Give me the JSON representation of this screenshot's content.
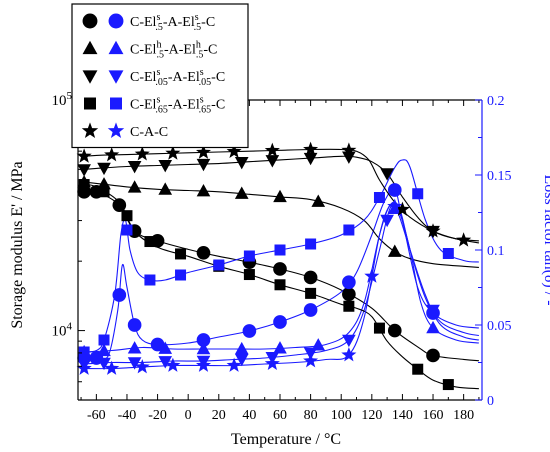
{
  "chart_data": {
    "type": "line",
    "xlabel": "Temperature / °C",
    "ylabel_left": "Storage modulus E' / MPa",
    "ylabel_right": "Loss factor tan(δ) / -",
    "x_ticks": [
      -60,
      -40,
      -20,
      0,
      20,
      40,
      60,
      80,
      100,
      120,
      140,
      160,
      180
    ],
    "xlim": [
      -72,
      192
    ],
    "y_left_scale": "log",
    "y_left_ticks": [
      "10^4",
      "10^5"
    ],
    "ylim_left": [
      5000,
      100000
    ],
    "y_right_ticks": [
      "0",
      "0.05",
      "0.1",
      "0.15",
      "0.2"
    ],
    "ylim_right": [
      0,
      0.2
    ],
    "colors": {
      "modulus": "#000000",
      "tan_delta": "#1a1aff",
      "axis_right": "#1a1aff"
    },
    "legend": {
      "position": "top-left",
      "entries": [
        {
          "marker": "circle",
          "name": [
            "C-El",
            "s",
            ".5",
            "-A-El",
            "s",
            ".5",
            "-C"
          ]
        },
        {
          "marker": "triangle-up",
          "name": [
            "C-El",
            "h",
            ".5",
            "-A-El",
            "h",
            ".5",
            "-C"
          ]
        },
        {
          "marker": "triangle-down",
          "name": [
            "C-El",
            "s",
            ".05",
            "-A-El",
            "s",
            ".05",
            "-C"
          ]
        },
        {
          "marker": "square",
          "name": [
            "C-El",
            "s",
            ".65",
            "-A-El",
            "s",
            ".65",
            "-C"
          ]
        },
        {
          "marker": "star",
          "name": [
            "C-A-C",
            "",
            "",
            "",
            "",
            "",
            ""
          ]
        }
      ]
    },
    "series": [
      {
        "marker": "circle",
        "modulus": [
          [
            -68,
            40000
          ],
          [
            -60,
            40000
          ],
          [
            -45,
            35000
          ],
          [
            -35,
            27000
          ],
          [
            -20,
            24500
          ],
          [
            0,
            22500
          ],
          [
            20,
            21000
          ],
          [
            40,
            19800
          ],
          [
            60,
            18500
          ],
          [
            80,
            17000
          ],
          [
            100,
            15000
          ],
          [
            120,
            12500
          ],
          [
            135,
            10000
          ],
          [
            150,
            8500
          ],
          [
            160,
            7800
          ],
          [
            180,
            7500
          ],
          [
            190,
            7400
          ]
        ],
        "tan_delta": [
          [
            -68,
            0.028
          ],
          [
            -60,
            0.028
          ],
          [
            -52,
            0.03
          ],
          [
            -46,
            0.06
          ],
          [
            -43,
            0.09
          ],
          [
            -40,
            0.075
          ],
          [
            -35,
            0.05
          ],
          [
            -30,
            0.04
          ],
          [
            -20,
            0.037
          ],
          [
            0,
            0.038
          ],
          [
            20,
            0.042
          ],
          [
            40,
            0.046
          ],
          [
            60,
            0.052
          ],
          [
            80,
            0.06
          ],
          [
            100,
            0.072
          ],
          [
            110,
            0.085
          ],
          [
            120,
            0.11
          ],
          [
            128,
            0.132
          ],
          [
            135,
            0.14
          ],
          [
            140,
            0.12
          ],
          [
            150,
            0.075
          ],
          [
            160,
            0.058
          ],
          [
            175,
            0.05
          ],
          [
            190,
            0.048
          ]
        ],
        "modulus_markers": [
          -68,
          -60,
          -45,
          -35,
          -20,
          10,
          40,
          60,
          80,
          105,
          135,
          160
        ],
        "tan_markers": [
          -68,
          -60,
          -45,
          -35,
          -20,
          10,
          40,
          60,
          80,
          105,
          135,
          160
        ]
      },
      {
        "marker": "triangle-up",
        "modulus": [
          [
            -68,
            44000
          ],
          [
            -60,
            43500
          ],
          [
            -40,
            42000
          ],
          [
            -20,
            41000
          ],
          [
            0,
            40500
          ],
          [
            20,
            40000
          ],
          [
            40,
            39000
          ],
          [
            60,
            38000
          ],
          [
            80,
            37000
          ],
          [
            100,
            34000
          ],
          [
            115,
            30000
          ],
          [
            125,
            25000
          ],
          [
            135,
            22000
          ],
          [
            145,
            20500
          ],
          [
            160,
            19500
          ],
          [
            180,
            19000
          ],
          [
            190,
            18800
          ]
        ],
        "tan_delta": [
          [
            -68,
            0.032
          ],
          [
            -50,
            0.033
          ],
          [
            -30,
            0.035
          ],
          [
            -10,
            0.034
          ],
          [
            10,
            0.034
          ],
          [
            30,
            0.034
          ],
          [
            50,
            0.034
          ],
          [
            70,
            0.035
          ],
          [
            90,
            0.037
          ],
          [
            105,
            0.045
          ],
          [
            115,
            0.065
          ],
          [
            125,
            0.11
          ],
          [
            132,
            0.13
          ],
          [
            138,
            0.125
          ],
          [
            145,
            0.1
          ],
          [
            152,
            0.065
          ],
          [
            160,
            0.048
          ],
          [
            175,
            0.04
          ],
          [
            190,
            0.038
          ]
        ],
        "modulus_markers": [
          -68,
          -55,
          -35,
          -15,
          10,
          35,
          60,
          85,
          135
        ],
        "tan_markers": [
          -68,
          -55,
          -35,
          -15,
          10,
          35,
          60,
          85,
          135,
          160
        ]
      },
      {
        "marker": "triangle-down",
        "modulus": [
          [
            -68,
            50000
          ],
          [
            -60,
            50500
          ],
          [
            -40,
            51500
          ],
          [
            -20,
            52000
          ],
          [
            0,
            52500
          ],
          [
            20,
            53000
          ],
          [
            40,
            54000
          ],
          [
            60,
            55000
          ],
          [
            80,
            56000
          ],
          [
            100,
            57000
          ],
          [
            110,
            56500
          ],
          [
            120,
            54000
          ],
          [
            130,
            48000
          ],
          [
            140,
            38000
          ],
          [
            150,
            31000
          ],
          [
            160,
            27000
          ],
          [
            175,
            25000
          ],
          [
            190,
            24500
          ]
        ],
        "tan_delta": [
          [
            -68,
            0.024
          ],
          [
            -50,
            0.025
          ],
          [
            -30,
            0.025
          ],
          [
            -10,
            0.026
          ],
          [
            10,
            0.026
          ],
          [
            30,
            0.027
          ],
          [
            50,
            0.028
          ],
          [
            70,
            0.03
          ],
          [
            90,
            0.033
          ],
          [
            105,
            0.04
          ],
          [
            115,
            0.06
          ],
          [
            125,
            0.1
          ],
          [
            132,
            0.128
          ],
          [
            137,
            0.125
          ],
          [
            145,
            0.1
          ],
          [
            155,
            0.07
          ],
          [
            165,
            0.05
          ],
          [
            180,
            0.042
          ],
          [
            190,
            0.04
          ]
        ],
        "modulus_markers": [
          -68,
          -55,
          -35,
          -15,
          10,
          35,
          55,
          80,
          105,
          130,
          160
        ],
        "tan_markers": [
          -68,
          -55,
          -35,
          -15,
          10,
          35,
          55,
          80,
          105,
          130,
          160
        ]
      },
      {
        "marker": "square",
        "modulus": [
          [
            -68,
            43000
          ],
          [
            -60,
            42000
          ],
          [
            -45,
            36000
          ],
          [
            -35,
            27000
          ],
          [
            -20,
            23000
          ],
          [
            0,
            21000
          ],
          [
            20,
            19000
          ],
          [
            40,
            17500
          ],
          [
            60,
            15800
          ],
          [
            80,
            14500
          ],
          [
            100,
            13000
          ],
          [
            110,
            12500
          ],
          [
            120,
            11500
          ],
          [
            130,
            9000
          ],
          [
            140,
            7700
          ],
          [
            150,
            6800
          ],
          [
            160,
            6100
          ],
          [
            175,
            5700
          ],
          [
            190,
            5600
          ]
        ],
        "tan_delta": [
          [
            -68,
            0.032
          ],
          [
            -60,
            0.033
          ],
          [
            -55,
            0.04
          ],
          [
            -48,
            0.07
          ],
          [
            -44,
            0.11
          ],
          [
            -41,
            0.12
          ],
          [
            -38,
            0.1
          ],
          [
            -33,
            0.085
          ],
          [
            -25,
            0.08
          ],
          [
            -15,
            0.08
          ],
          [
            0,
            0.085
          ],
          [
            20,
            0.09
          ],
          [
            40,
            0.096
          ],
          [
            60,
            0.1
          ],
          [
            80,
            0.104
          ],
          [
            100,
            0.11
          ],
          [
            115,
            0.12
          ],
          [
            125,
            0.135
          ],
          [
            135,
            0.155
          ],
          [
            140,
            0.16
          ],
          [
            145,
            0.155
          ],
          [
            155,
            0.12
          ],
          [
            165,
            0.1
          ],
          [
            180,
            0.093
          ],
          [
            190,
            0.092
          ]
        ],
        "modulus_markers": [
          -68,
          -55,
          -40,
          -25,
          -5,
          20,
          40,
          60,
          80,
          105,
          125,
          150,
          170
        ],
        "tan_markers": [
          -68,
          -55,
          -40,
          -25,
          -5,
          20,
          40,
          60,
          80,
          105,
          125,
          150,
          170
        ]
      },
      {
        "marker": "star",
        "modulus": [
          [
            -68,
            57000
          ],
          [
            -60,
            57500
          ],
          [
            -40,
            58000
          ],
          [
            -20,
            58500
          ],
          [
            0,
            59000
          ],
          [
            20,
            59500
          ],
          [
            40,
            60000
          ],
          [
            60,
            60500
          ],
          [
            80,
            61000
          ],
          [
            100,
            61000
          ],
          [
            110,
            60000
          ],
          [
            118,
            55000
          ],
          [
            125,
            45000
          ],
          [
            135,
            36000
          ],
          [
            145,
            31000
          ],
          [
            160,
            27000
          ],
          [
            175,
            25000
          ],
          [
            190,
            24000
          ]
        ],
        "tan_delta": [
          [
            -68,
            0.021
          ],
          [
            -50,
            0.021
          ],
          [
            -30,
            0.022
          ],
          [
            -10,
            0.023
          ],
          [
            10,
            0.023
          ],
          [
            30,
            0.023
          ],
          [
            50,
            0.024
          ],
          [
            70,
            0.025
          ],
          [
            90,
            0.027
          ],
          [
            105,
            0.03
          ],
          [
            115,
            0.055
          ],
          [
            125,
            0.11
          ],
          [
            132,
            0.13
          ],
          [
            138,
            0.128
          ],
          [
            145,
            0.1
          ],
          [
            155,
            0.068
          ],
          [
            165,
            0.052
          ],
          [
            180,
            0.045
          ],
          [
            190,
            0.043
          ]
        ],
        "modulus_markers": [
          -68,
          -50,
          -30,
          -10,
          10,
          30,
          55,
          80,
          105,
          140,
          160,
          180
        ],
        "tan_markers": [
          -68,
          -50,
          -30,
          -10,
          10,
          30,
          55,
          80,
          105,
          120,
          135
        ]
      }
    ]
  }
}
